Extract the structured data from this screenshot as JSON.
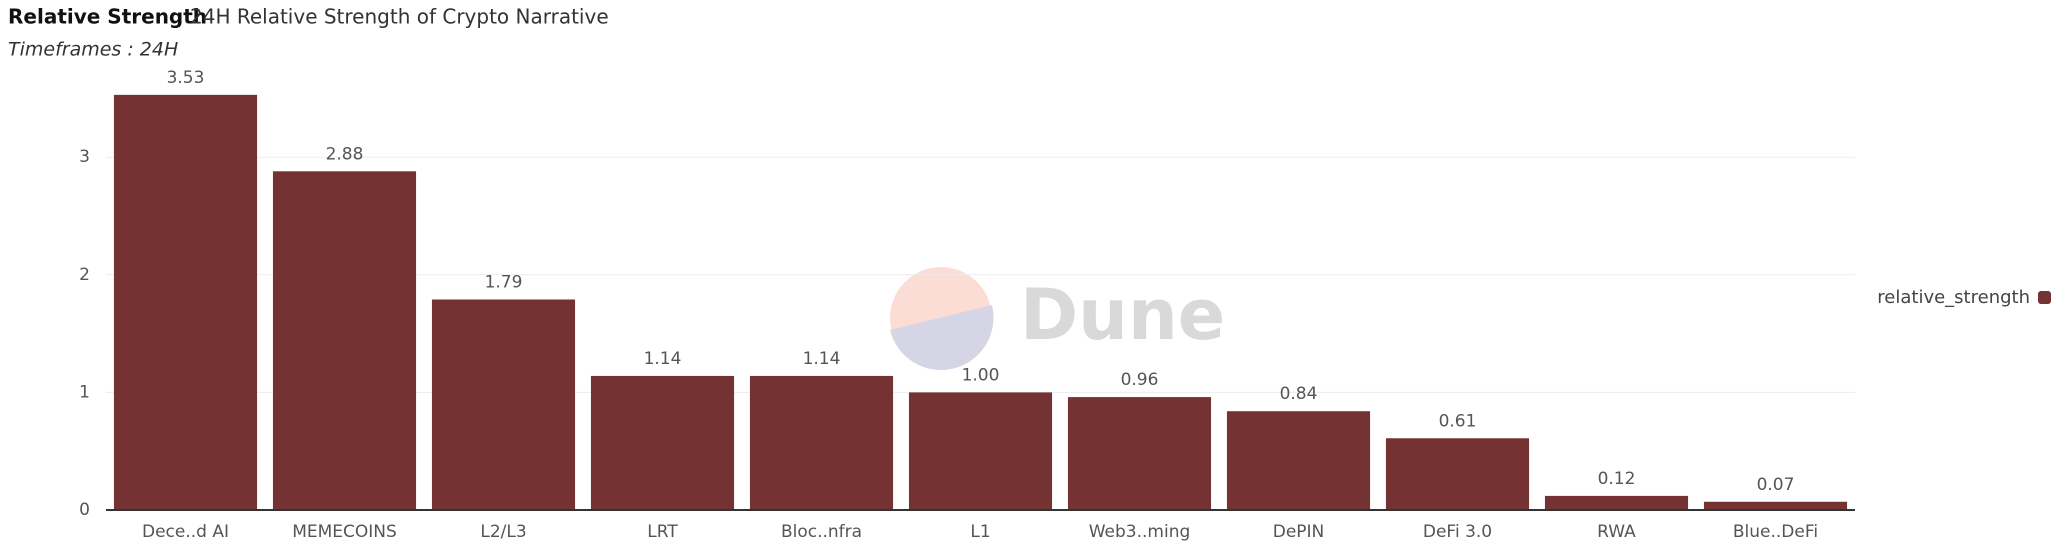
{
  "chart_data": {
    "type": "bar",
    "title": "Relative Strength",
    "subtitle": "24H Relative Strength of Crypto Narrative",
    "caption": "Timeframes : 24H",
    "watermark": "Dune",
    "categories": [
      "Dece..d AI",
      "MEMECOINS",
      "L2/L3",
      "LRT",
      "Bloc..nfra",
      "L1",
      "Web3..ming",
      "DePIN",
      "DeFi 3.0",
      "RWA",
      "Blue..DeFi"
    ],
    "series": [
      {
        "name": "relative_strength",
        "color": "#743233",
        "values": [
          3.53,
          2.88,
          1.79,
          1.14,
          1.14,
          1.0,
          0.96,
          0.84,
          0.61,
          0.12,
          0.07
        ],
        "value_labels": [
          "3.53",
          "2.88",
          "1.79",
          "1.14",
          "1.14",
          "1.00",
          "0.96",
          "0.84",
          "0.61",
          "0.12",
          "0.07"
        ]
      }
    ],
    "ylim": [
      0,
      3.75
    ],
    "yticks": [
      0,
      1,
      2,
      3
    ],
    "grid": true,
    "legend": "right"
  }
}
